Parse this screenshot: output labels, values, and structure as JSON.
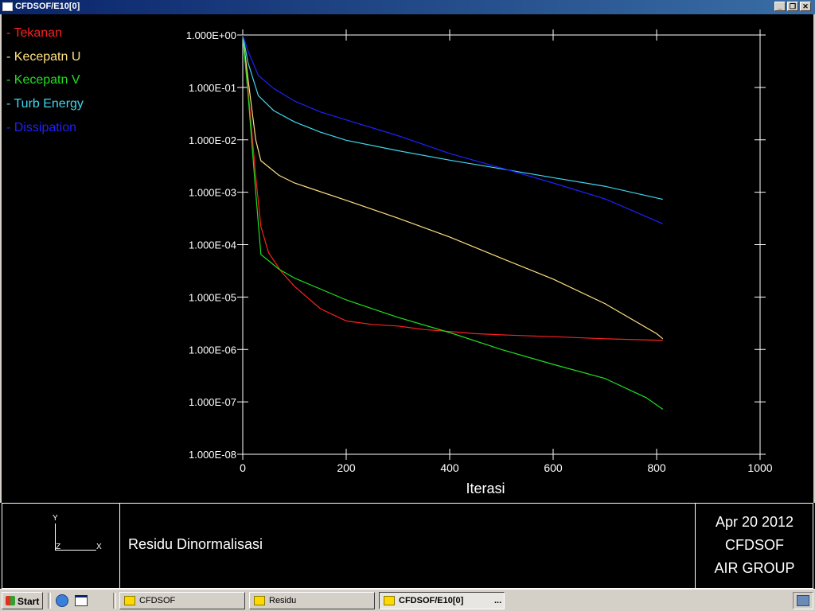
{
  "window": {
    "title": "CFDSOF/E10[0]"
  },
  "legend": [
    {
      "label": "- Tekanan",
      "color": "#ff2020"
    },
    {
      "label": "- Kecepatn U",
      "color": "#ffe080"
    },
    {
      "label": "- Kecepatn V",
      "color": "#20e020"
    },
    {
      "label": "- Turb Energy",
      "color": "#40d8f0"
    },
    {
      "label": "- Dissipation",
      "color": "#2020ff"
    }
  ],
  "chart_data": {
    "type": "line",
    "xlabel": "Iterasi",
    "xlim": [
      0,
      1000
    ],
    "xticks": [
      "0",
      "200",
      "400",
      "600",
      "800",
      "1000"
    ],
    "ylim": [
      1e-08,
      1
    ],
    "yscale": "log",
    "yticks": [
      "1.000E+00",
      "1.000E-01",
      "1.000E-02",
      "1.000E-03",
      "1.000E-04",
      "1.000E-05",
      "1.000E-06",
      "1.000E-07",
      "1.000E-08"
    ],
    "series": [
      {
        "name": "Tekanan",
        "color": "#ff2020",
        "points": [
          [
            0,
            1.0
          ],
          [
            10,
            0.1
          ],
          [
            25,
            0.002
          ],
          [
            35,
            0.00022
          ],
          [
            50,
            7e-05
          ],
          [
            75,
            3e-05
          ],
          [
            100,
            1.6e-05
          ],
          [
            150,
            6e-06
          ],
          [
            200,
            3.5e-06
          ],
          [
            250,
            3e-06
          ],
          [
            300,
            2.8e-06
          ],
          [
            350,
            2.4e-06
          ],
          [
            400,
            2.2e-06
          ],
          [
            450,
            2e-06
          ],
          [
            500,
            1.9e-06
          ],
          [
            600,
            1.75e-06
          ],
          [
            700,
            1.6e-06
          ],
          [
            800,
            1.5e-06
          ],
          [
            812,
            1.5e-06
          ]
        ]
      },
      {
        "name": "Kecepatn U",
        "color": "#ffe080",
        "points": [
          [
            0,
            1.0
          ],
          [
            10,
            0.15
          ],
          [
            25,
            0.01
          ],
          [
            35,
            0.004
          ],
          [
            70,
            0.0021
          ],
          [
            100,
            0.0015
          ],
          [
            200,
            0.0007
          ],
          [
            300,
            0.00032
          ],
          [
            400,
            0.00014
          ],
          [
            500,
            5.5e-05
          ],
          [
            600,
            2.2e-05
          ],
          [
            700,
            7.5e-06
          ],
          [
            800,
            2e-06
          ],
          [
            812,
            1.6e-06
          ]
        ]
      },
      {
        "name": "Kecepatn V",
        "color": "#20e020",
        "points": [
          [
            0,
            1.0
          ],
          [
            10,
            0.08
          ],
          [
            25,
            0.001
          ],
          [
            35,
            6.5e-05
          ],
          [
            70,
            3.4e-05
          ],
          [
            100,
            2.3e-05
          ],
          [
            200,
            8.8e-06
          ],
          [
            300,
            4.1e-06
          ],
          [
            400,
            2.1e-06
          ],
          [
            500,
            1e-06
          ],
          [
            600,
            5.2e-07
          ],
          [
            700,
            2.8e-07
          ],
          [
            780,
            1.2e-07
          ],
          [
            812,
            7.2e-08
          ]
        ]
      },
      {
        "name": "Turb Energy",
        "color": "#40d8f0",
        "points": [
          [
            0,
            1.0
          ],
          [
            10,
            0.3
          ],
          [
            30,
            0.07
          ],
          [
            60,
            0.036
          ],
          [
            100,
            0.022
          ],
          [
            150,
            0.014
          ],
          [
            200,
            0.0098
          ],
          [
            300,
            0.0062
          ],
          [
            400,
            0.0041
          ],
          [
            500,
            0.0028
          ],
          [
            600,
            0.0019
          ],
          [
            700,
            0.0013
          ],
          [
            812,
            0.00073
          ]
        ]
      },
      {
        "name": "Dissipation",
        "color": "#2020ff",
        "points": [
          [
            0,
            1.0
          ],
          [
            10,
            0.5
          ],
          [
            30,
            0.17
          ],
          [
            60,
            0.095
          ],
          [
            100,
            0.055
          ],
          [
            150,
            0.034
          ],
          [
            200,
            0.024
          ],
          [
            300,
            0.012
          ],
          [
            400,
            0.0055
          ],
          [
            500,
            0.0029
          ],
          [
            600,
            0.0015
          ],
          [
            700,
            0.00075
          ],
          [
            812,
            0.00025
          ]
        ]
      }
    ]
  },
  "footer": {
    "axes_labels": {
      "y": "Y",
      "z": "Z",
      "x": "X"
    },
    "title": "Residu Dinormalisasi",
    "info": [
      "Apr 20 2012",
      "CFDSOF",
      "AIR GROUP"
    ]
  },
  "taskbar": {
    "start": "Start",
    "tasks": [
      {
        "label": "CFDSOF",
        "active": false
      },
      {
        "label": "Residu",
        "active": false
      },
      {
        "label": "CFDSOF/E10[0]",
        "active": true
      }
    ],
    "more": "..."
  }
}
